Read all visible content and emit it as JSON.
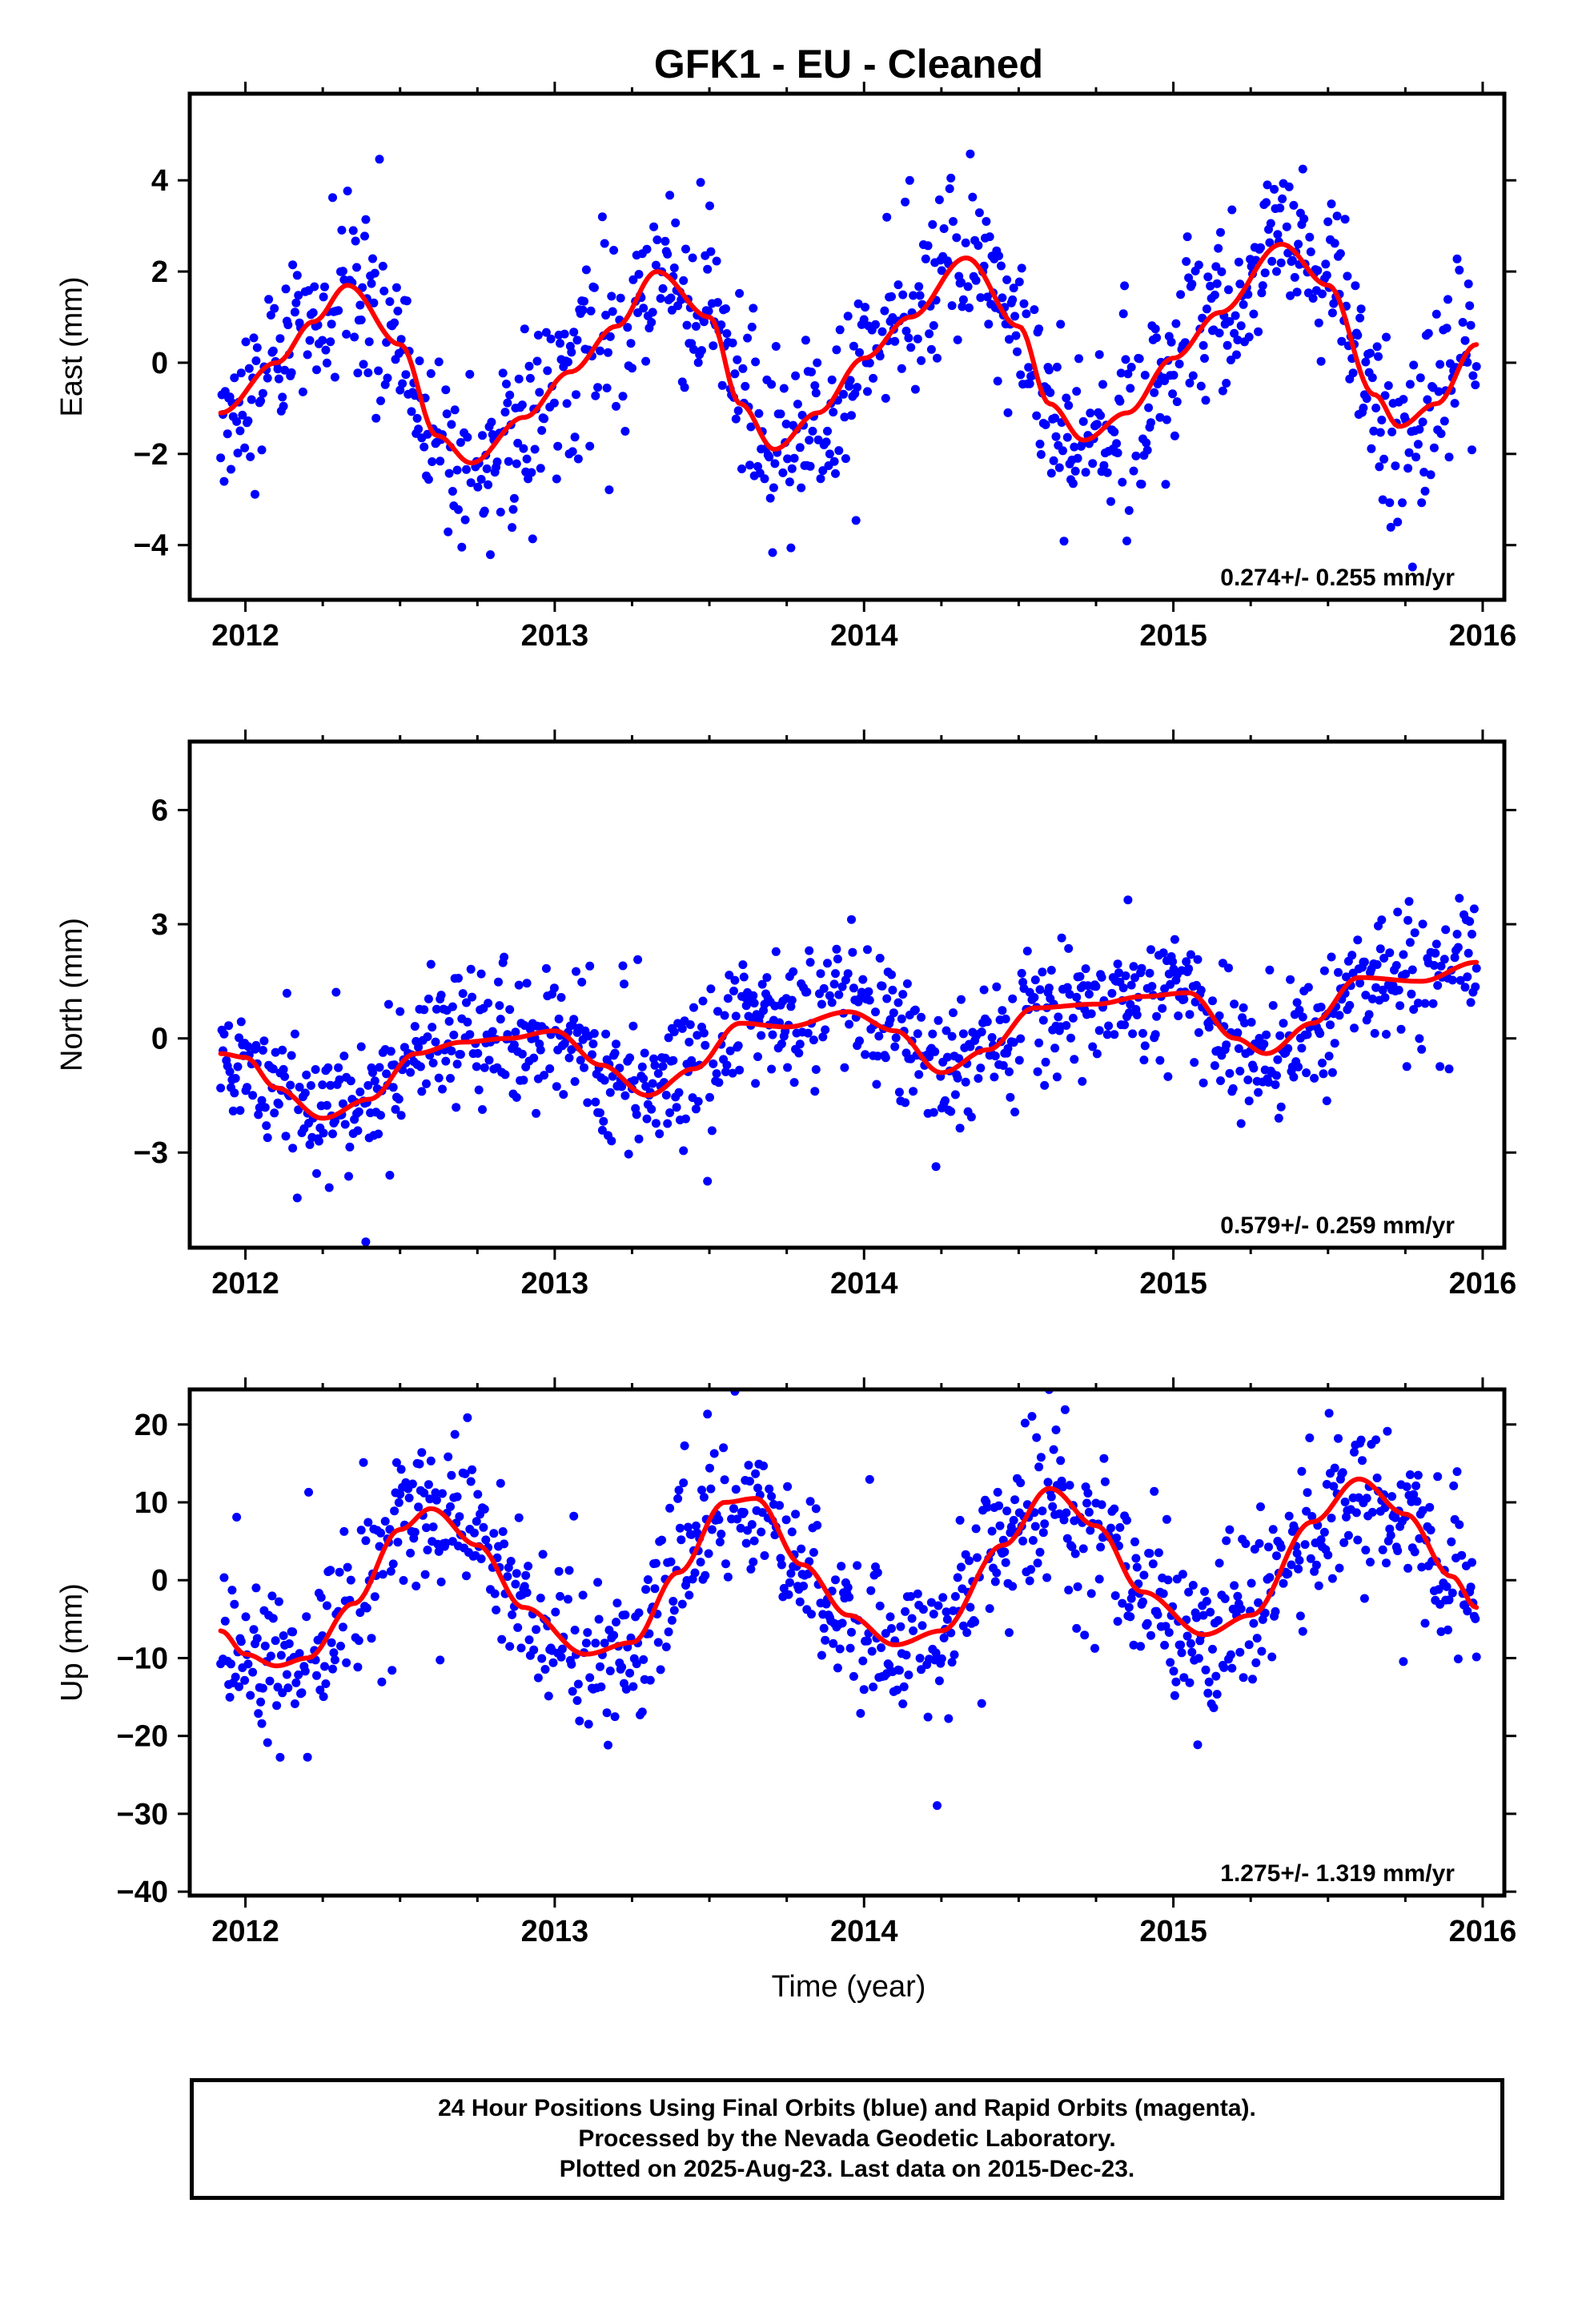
{
  "figure": {
    "title": "GFK1  - EU - Cleaned",
    "xlabel": "Time (year)",
    "caption": [
      "24 Hour Positions Using Final Orbits (blue) and Rapid Orbits (magenta).",
      "Processed by the Nevada Geodetic Laboratory.",
      "Plotted on 2025-Aug-23. Last data on 2015-Dec-23."
    ],
    "colors": {
      "points": "#0000ff",
      "fit": "#ff0000",
      "frame": "#000000"
    }
  },
  "chart_data": [
    {
      "type": "scatter",
      "panel": "east",
      "ylabel": "East (mm)",
      "xlim": [
        2011.82,
        2016.07
      ],
      "ylim": [
        -5.2,
        5.9
      ],
      "xticks": [
        2012,
        2013,
        2014,
        2015,
        2016
      ],
      "yticks": [
        -4,
        -2,
        0,
        2,
        4
      ],
      "rate_text": "0.274+/- 0.255 mm/yr",
      "data_range": [
        2011.92,
        2015.98
      ],
      "fit": {
        "x": [
          2011.92,
          2012.1,
          2012.22,
          2012.33,
          2012.5,
          2012.62,
          2012.73,
          2012.9,
          2013.05,
          2013.2,
          2013.33,
          2013.5,
          2013.6,
          2013.71,
          2013.85,
          2014.0,
          2014.15,
          2014.33,
          2014.5,
          2014.6,
          2014.71,
          2014.85,
          2015.0,
          2015.15,
          2015.35,
          2015.5,
          2015.65,
          2015.73,
          2015.85,
          2015.98
        ],
        "y": [
          -1.1,
          0.0,
          0.9,
          1.7,
          0.4,
          -1.6,
          -2.2,
          -1.2,
          -0.2,
          0.8,
          2.0,
          1.0,
          -0.9,
          -1.9,
          -1.1,
          0.1,
          1.0,
          2.3,
          0.8,
          -0.9,
          -1.7,
          -1.1,
          0.1,
          1.1,
          2.6,
          1.7,
          -0.7,
          -1.4,
          -0.9,
          0.4
        ]
      },
      "scatter_noise_sd": 0.95,
      "scatter_count": 1100
    },
    {
      "type": "scatter",
      "panel": "north",
      "ylabel": "North (mm)",
      "xlim": [
        2011.82,
        2016.07
      ],
      "ylim": [
        -5.5,
        7.8
      ],
      "xticks": [
        2012,
        2013,
        2014,
        2015,
        2016
      ],
      "yticks": [
        -3,
        0,
        3,
        6
      ],
      "rate_text": "0.579+/- 0.259 mm/yr",
      "data_range": [
        2011.92,
        2015.98
      ],
      "fit": {
        "x": [
          2011.92,
          2012.0,
          2012.1,
          2012.25,
          2012.4,
          2012.55,
          2012.7,
          2012.85,
          2013.0,
          2013.15,
          2013.3,
          2013.45,
          2013.6,
          2013.75,
          2013.95,
          2014.1,
          2014.25,
          2014.4,
          2014.55,
          2014.75,
          2014.9,
          2015.05,
          2015.2,
          2015.3,
          2015.45,
          2015.6,
          2015.8,
          2015.98
        ],
        "y": [
          -0.4,
          -0.5,
          -1.3,
          -2.1,
          -1.6,
          -0.4,
          -0.1,
          0.0,
          0.2,
          -0.7,
          -1.5,
          -0.8,
          0.4,
          0.3,
          0.7,
          0.2,
          -0.9,
          -0.3,
          0.8,
          0.9,
          1.1,
          1.2,
          0.0,
          -0.4,
          0.4,
          1.6,
          1.5,
          2.0
        ]
      },
      "scatter_noise_sd": 0.85,
      "scatter_count": 1100
    },
    {
      "type": "scatter",
      "panel": "up",
      "ylabel": "Up (mm)",
      "xlim": [
        2011.82,
        2016.07
      ],
      "ylim": [
        -40.5,
        24.5
      ],
      "xticks": [
        2012,
        2013,
        2014,
        2015,
        2016
      ],
      "yticks": [
        -40,
        -30,
        -20,
        -10,
        0,
        10,
        20
      ],
      "rate_text": "1.275+/- 1.319 mm/yr",
      "data_range": [
        2011.92,
        2015.98
      ],
      "fit": {
        "x": [
          2011.92,
          2012.0,
          2012.1,
          2012.2,
          2012.35,
          2012.5,
          2012.6,
          2012.75,
          2012.9,
          2013.1,
          2013.25,
          2013.4,
          2013.55,
          2013.65,
          2013.8,
          2013.95,
          2014.1,
          2014.25,
          2014.45,
          2014.6,
          2014.75,
          2014.9,
          2015.1,
          2015.25,
          2015.45,
          2015.6,
          2015.75,
          2015.9,
          2015.98
        ],
        "y": [
          -6.5,
          -9.5,
          -11.0,
          -10.0,
          -3.0,
          6.5,
          9.2,
          4.5,
          -3.5,
          -9.5,
          -8.0,
          1.0,
          10.0,
          10.5,
          2.0,
          -4.5,
          -8.3,
          -6.5,
          4.5,
          11.8,
          7.0,
          -1.5,
          -7.0,
          -4.5,
          7.5,
          13.0,
          8.5,
          0.5,
          -3.5
        ]
      },
      "scatter_noise_sd": 4.8,
      "scatter_count": 1100
    }
  ]
}
